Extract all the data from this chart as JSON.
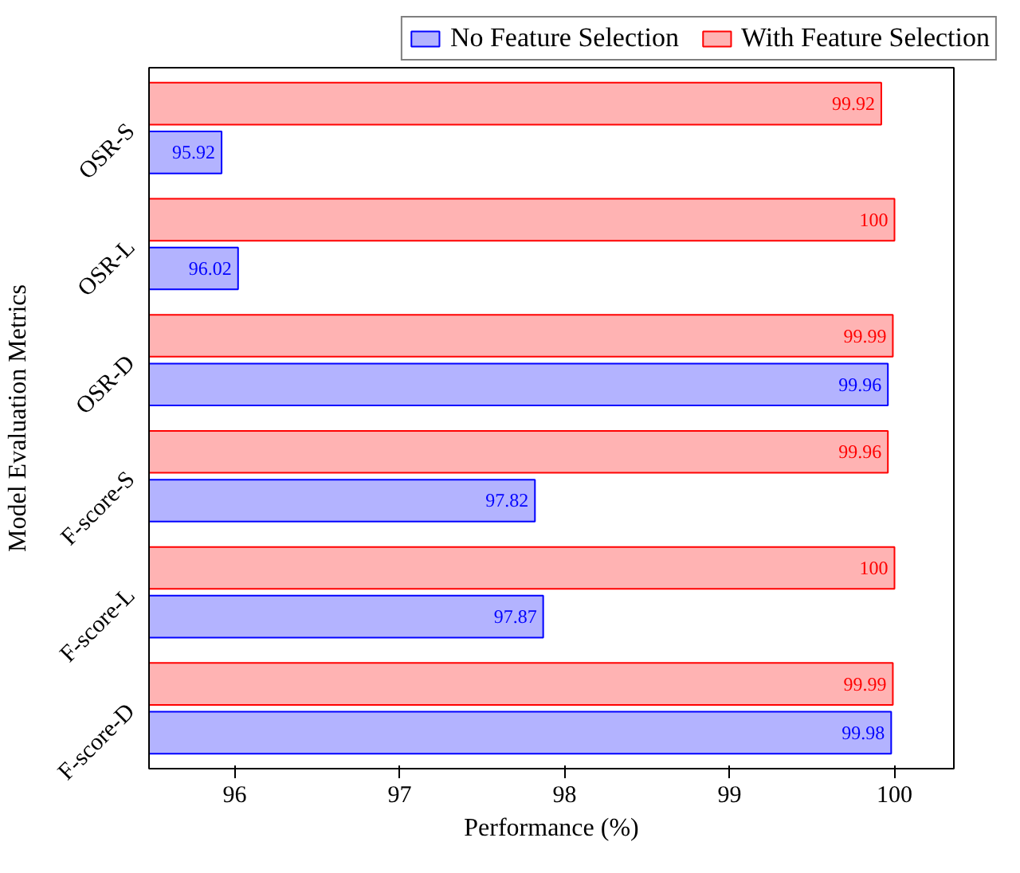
{
  "chart_data": {
    "type": "bar",
    "orientation": "horizontal",
    "xlabel": "Performance (%)",
    "ylabel": "Model Evaluation Metrics",
    "categories": [
      "OSR-S",
      "OSR-L",
      "OSR-D",
      "F-score-S",
      "F-score-L",
      "F-score-D"
    ],
    "series": [
      {
        "name": "No Feature Selection",
        "color": "#b3b3ff",
        "values": [
          95.92,
          96.02,
          99.96,
          97.82,
          97.87,
          99.98
        ]
      },
      {
        "name": "With Feature Selection",
        "color": "#ffb3b3",
        "values": [
          99.92,
          100,
          99.99,
          99.96,
          100,
          99.99
        ]
      }
    ],
    "xlim": [
      95.48,
      100.36
    ],
    "xticks": [
      96,
      97,
      98,
      99,
      100
    ],
    "data_labels": true,
    "legend": "top",
    "grid": false
  }
}
